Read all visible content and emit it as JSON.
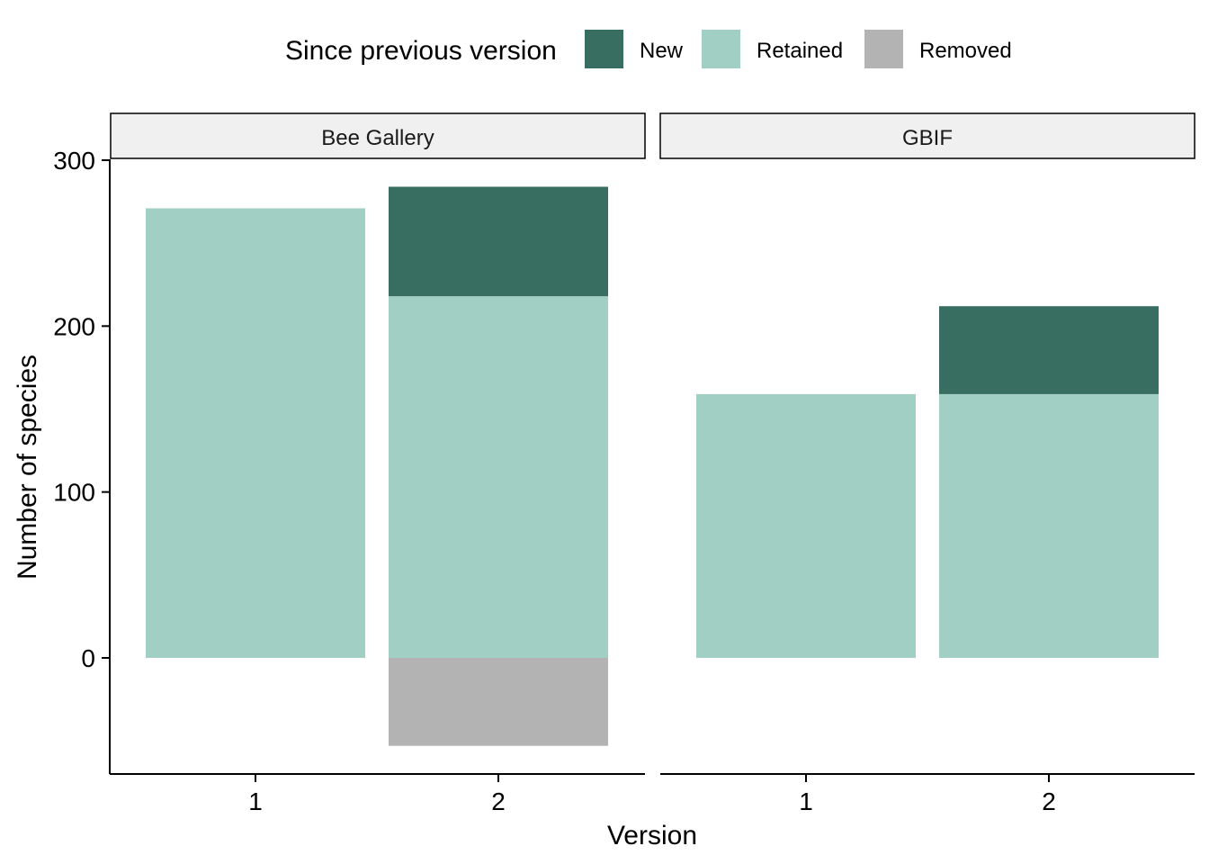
{
  "chart_data": {
    "type": "bar",
    "stacked": true,
    "legend": {
      "title": "Since previous version",
      "placement": "top",
      "entries": [
        {
          "key": "new",
          "label": "New",
          "color": "#386E62"
        },
        {
          "key": "retained",
          "label": "Retained",
          "color": "#A2CFC3"
        },
        {
          "key": "removed",
          "label": "Removed",
          "color": "#B3B3B3"
        }
      ]
    },
    "xlabel": "Version",
    "ylabel": "Number of species",
    "ylim": [
      -70,
      300
    ],
    "yticks": [
      0,
      100,
      200,
      300
    ],
    "grid": false,
    "categories": [
      "1",
      "2"
    ],
    "facets": [
      {
        "title": "Bee Gallery",
        "series": [
          {
            "name": "Retained",
            "key": "retained",
            "values": [
              271,
              218
            ]
          },
          {
            "name": "New",
            "key": "new",
            "values": [
              0,
              66
            ]
          },
          {
            "name": "Removed",
            "key": "removed",
            "values": [
              0,
              -53
            ]
          }
        ]
      },
      {
        "title": "GBIF",
        "series": [
          {
            "name": "Retained",
            "key": "retained",
            "values": [
              159,
              159
            ]
          },
          {
            "name": "New",
            "key": "new",
            "values": [
              0,
              53
            ]
          },
          {
            "name": "Removed",
            "key": "removed",
            "values": [
              0,
              0
            ]
          }
        ]
      }
    ]
  }
}
